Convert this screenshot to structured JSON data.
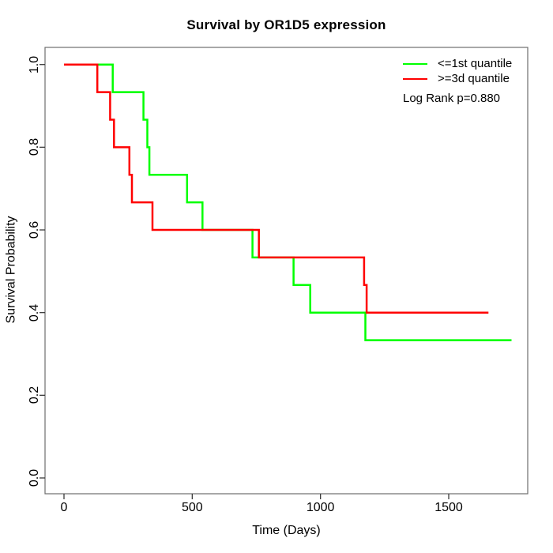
{
  "chart_data": {
    "type": "line",
    "variant": "kaplan-meier-step",
    "title": "Survival by OR1D5 expression",
    "xlabel": "Time (Days)",
    "ylabel": "Survival Probability",
    "xlim": [
      0,
      1800
    ],
    "ylim": [
      0,
      1
    ],
    "grid": false,
    "legend_position": "top-right",
    "x_ticks": [
      {
        "label": "0",
        "value": 0
      },
      {
        "label": "500",
        "value": 500
      },
      {
        "label": "1000",
        "value": 1000
      },
      {
        "label": "1500",
        "value": 1500
      }
    ],
    "y_ticks": [
      {
        "label": "0.0",
        "value": 0.0
      },
      {
        "label": "0.2",
        "value": 0.2
      },
      {
        "label": "0.4",
        "value": 0.4
      },
      {
        "label": "0.6",
        "value": 0.6
      },
      {
        "label": "0.8",
        "value": 0.8
      },
      {
        "label": "1.0",
        "value": 1.0
      }
    ],
    "series": [
      {
        "name": "<=1st quantile",
        "color": "#00ff00",
        "end_time": 1745,
        "points": [
          [
            0,
            1.0
          ],
          [
            190,
            0.9333
          ],
          [
            310,
            0.8667
          ],
          [
            325,
            0.8
          ],
          [
            333,
            0.7333
          ],
          [
            480,
            0.6667
          ],
          [
            540,
            0.6
          ],
          [
            735,
            0.5333
          ],
          [
            895,
            0.4667
          ],
          [
            960,
            0.4
          ],
          [
            1175,
            0.3333
          ]
        ]
      },
      {
        "name": ">=3d quantile",
        "color": "#ff0000",
        "end_time": 1655,
        "points": [
          [
            0,
            1.0
          ],
          [
            130,
            0.9333
          ],
          [
            180,
            0.8667
          ],
          [
            195,
            0.8
          ],
          [
            255,
            0.7333
          ],
          [
            265,
            0.6667
          ],
          [
            345,
            0.6
          ],
          [
            760,
            0.5333
          ],
          [
            1170,
            0.4667
          ],
          [
            1180,
            0.4
          ]
        ]
      }
    ]
  },
  "legend": {
    "items": [
      {
        "label": "<=1st quantile",
        "color": "#00ff00"
      },
      {
        "label": ">=3d quantile",
        "color": "#ff0000"
      }
    ],
    "note": "Log Rank p=0.880"
  },
  "frame": {
    "box_color": "#6e6e6e",
    "tick_color": "#3a3a3a",
    "text_color": "#000000"
  }
}
